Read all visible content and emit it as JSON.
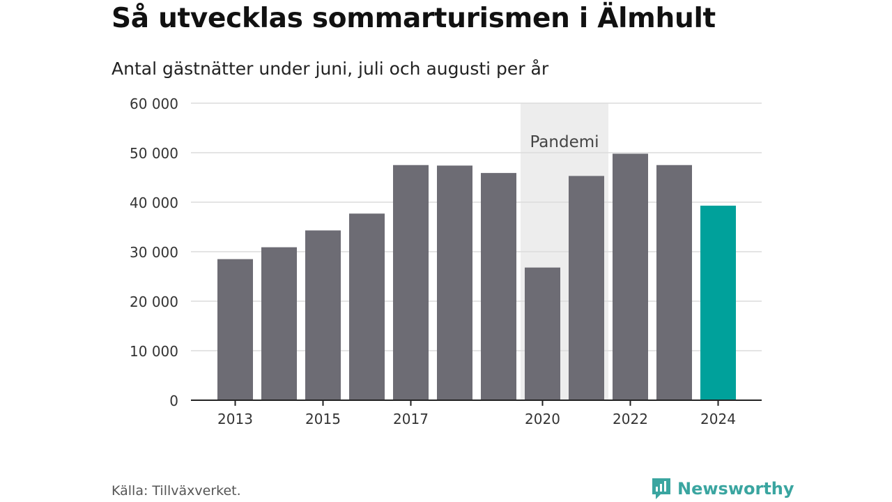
{
  "header": {
    "title": "Så utvecklas sommarturismen i Älmhult",
    "subtitle": "Antal gästnätter under juni, juli och augusti per år"
  },
  "footer": {
    "source": "Källa: Tillväxverket.",
    "brand": "Newsworthy"
  },
  "colors": {
    "bar": "#6d6c74",
    "highlight": "#00a19b",
    "band": "#ededed",
    "grid": "#dcdcdc",
    "axis": "#222222",
    "brand": "#3aa5a0"
  },
  "chart_data": {
    "type": "bar",
    "title": "Så utvecklas sommarturismen i Älmhult",
    "subtitle": "Antal gästnätter under juni, juli och augusti per år",
    "xlabel": "",
    "ylabel": "",
    "categories": [
      "2013",
      "2014",
      "2015",
      "2016",
      "2017",
      "2018",
      "2019",
      "2020",
      "2021",
      "2022",
      "2023",
      "2024"
    ],
    "values": [
      28500,
      30900,
      34300,
      37700,
      47500,
      47400,
      45900,
      26800,
      45300,
      49800,
      47500,
      39300
    ],
    "highlight_index": 11,
    "ylim": [
      0,
      60000
    ],
    "yticks": [
      0,
      10000,
      20000,
      30000,
      40000,
      50000,
      60000
    ],
    "ytick_labels": [
      "0",
      "10 000",
      "20 000",
      "30 000",
      "40 000",
      "50 000",
      "60 000"
    ],
    "xtick_labels": [
      "2013",
      "2015",
      "2017",
      "2020",
      "2022",
      "2024"
    ],
    "annotation": {
      "label": "Pandemi",
      "from": "2020",
      "to": "2021"
    },
    "grid": true,
    "legend": "none"
  }
}
